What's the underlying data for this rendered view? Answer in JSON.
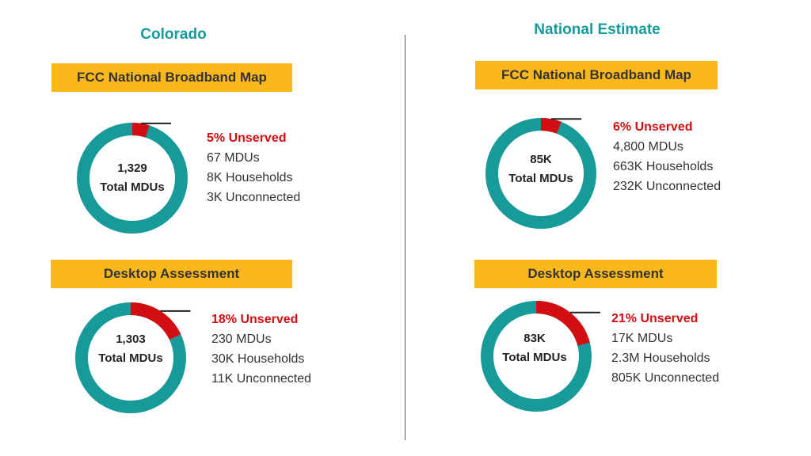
{
  "colors": {
    "teal": "#18999a",
    "red": "#d30e12",
    "banner": "#fbb81c",
    "text": "#333333",
    "leader": "#222222"
  },
  "columns": [
    {
      "title": "Colorado"
    },
    {
      "title": "National Estimate"
    }
  ],
  "panels": [
    {
      "banner": "FCC National Broadband Map",
      "center_value": "1,329",
      "center_label": "Total MDUs",
      "unserved_label": "5% Unserved",
      "line1": "67 MDUs",
      "line2": "8K Households",
      "line3": "3K Unconnected"
    },
    {
      "banner": "Desktop Assessment",
      "center_value": "1,303",
      "center_label": "Total MDUs",
      "unserved_label": "18% Unserved",
      "line1": "230 MDUs",
      "line2": "30K Households",
      "line3": "11K Unconnected"
    },
    {
      "banner": "FCC National Broadband Map",
      "center_value": "85K",
      "center_label": "Total MDUs",
      "unserved_label": "6% Unserved",
      "line1": "4,800 MDUs",
      "line2": "663K Households",
      "line3": "232K Unconnected"
    },
    {
      "banner": "Desktop Assessment",
      "center_value": "83K",
      "center_label": "Total MDUs",
      "unserved_label": "21% Unserved",
      "line1": "17K MDUs",
      "line2": "2.3M Households",
      "line3": "805K Unconnected"
    }
  ],
  "chart_data": [
    {
      "type": "pie",
      "categories": [
        "Unserved",
        "Served"
      ],
      "values": [
        5,
        95
      ]
    },
    {
      "type": "pie",
      "categories": [
        "Unserved",
        "Served"
      ],
      "values": [
        18,
        82
      ]
    },
    {
      "type": "pie",
      "categories": [
        "Unserved",
        "Served"
      ],
      "values": [
        6,
        94
      ]
    },
    {
      "type": "pie",
      "categories": [
        "Unserved",
        "Served"
      ],
      "values": [
        21,
        79
      ]
    }
  ]
}
